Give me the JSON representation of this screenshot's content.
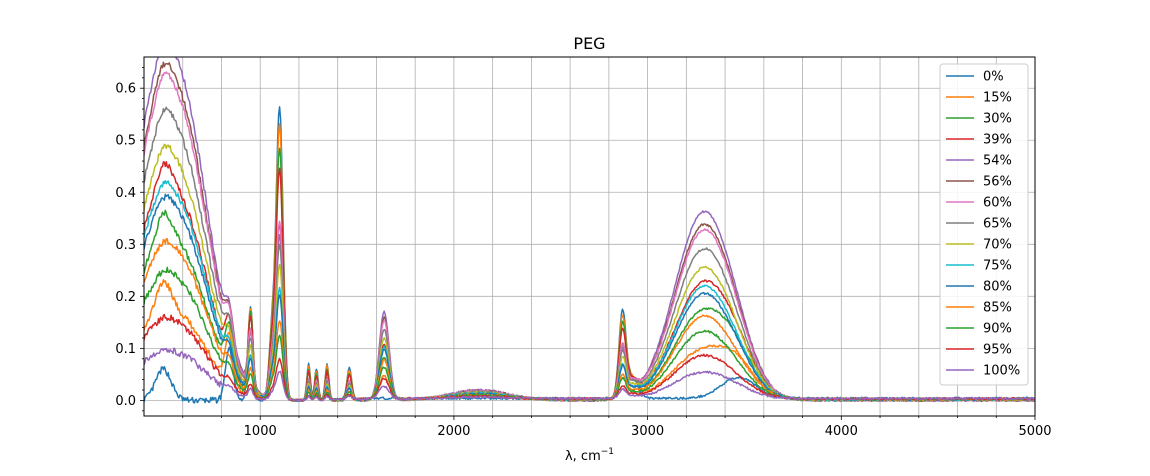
{
  "chart_data": {
    "type": "line",
    "title": "PEG",
    "xlabel": "λ, cm⁻¹",
    "ylabel": "",
    "xlim": [
      400,
      5000
    ],
    "ylim": [
      -0.03,
      0.66
    ],
    "xticks": [
      1000,
      2000,
      3000,
      4000,
      5000
    ],
    "yticks": [
      0.0,
      0.1,
      0.2,
      0.3,
      0.4,
      0.5,
      0.6
    ],
    "grid": true,
    "legend_position": "top-right",
    "series": [
      {
        "name": "0%",
        "color": "#1f77b4",
        "s": 1.0,
        "w": 0.0
      },
      {
        "name": "15%",
        "color": "#ff7f0e",
        "s": 0.94,
        "w": 0.26
      },
      {
        "name": "30%",
        "color": "#2ca02c",
        "s": 0.86,
        "w": 0.47
      },
      {
        "name": "39%",
        "color": "#d62728",
        "s": 0.79,
        "w": 0.62
      },
      {
        "name": "54%",
        "color": "#9467bd",
        "s": 0.56,
        "w": 1.0
      },
      {
        "name": "56%",
        "color": "#8c564b",
        "s": 0.6,
        "w": 0.93
      },
      {
        "name": "60%",
        "color": "#e377c2",
        "s": 0.61,
        "w": 0.9
      },
      {
        "name": "65%",
        "color": "#7f7f7f",
        "s": 0.53,
        "w": 0.8
      },
      {
        "name": "70%",
        "color": "#bcbd22",
        "s": 0.46,
        "w": 0.7
      },
      {
        "name": "75%",
        "color": "#17becf",
        "s": 0.38,
        "w": 0.6
      },
      {
        "name": "80%",
        "color": "#1f77b4",
        "s": 0.36,
        "w": 0.56
      },
      {
        "name": "85%",
        "color": "#ff7f0e",
        "s": 0.27,
        "w": 0.44
      },
      {
        "name": "90%",
        "color": "#2ca02c",
        "s": 0.22,
        "w": 0.36
      },
      {
        "name": "95%",
        "color": "#d62728",
        "s": 0.14,
        "w": 0.23
      },
      {
        "name": "100%",
        "color": "#9467bd",
        "s": 0.1,
        "w": 0.14
      }
    ],
    "peaks_water": [
      {
        "x": 500,
        "h": 0.6,
        "sd": 180
      },
      {
        "x": 650,
        "h": 0.12,
        "sd": 120
      },
      {
        "x": 1640,
        "h": 0.17,
        "sd": 25
      },
      {
        "x": 2130,
        "h": 0.02,
        "sd": 150
      },
      {
        "x": 3290,
        "h": 0.36,
        "sd": 150
      }
    ],
    "peaks_solute": [
      {
        "x": 500,
        "h": 0.06,
        "sd": 40
      },
      {
        "x": 840,
        "h": 0.1,
        "sd": 20
      },
      {
        "x": 950,
        "h": 0.18,
        "sd": 13
      },
      {
        "x": 1100,
        "h": 0.56,
        "sd": 18
      },
      {
        "x": 1060,
        "h": 0.12,
        "sd": 15
      },
      {
        "x": 1250,
        "h": 0.07,
        "sd": 9
      },
      {
        "x": 1290,
        "h": 0.06,
        "sd": 9
      },
      {
        "x": 1345,
        "h": 0.07,
        "sd": 9
      },
      {
        "x": 1460,
        "h": 0.06,
        "sd": 12
      },
      {
        "x": 2870,
        "h": 0.16,
        "sd": 18
      },
      {
        "x": 2920,
        "h": 0.04,
        "sd": 30
      },
      {
        "x": 3470,
        "h": 0.04,
        "sd": 90
      }
    ]
  }
}
